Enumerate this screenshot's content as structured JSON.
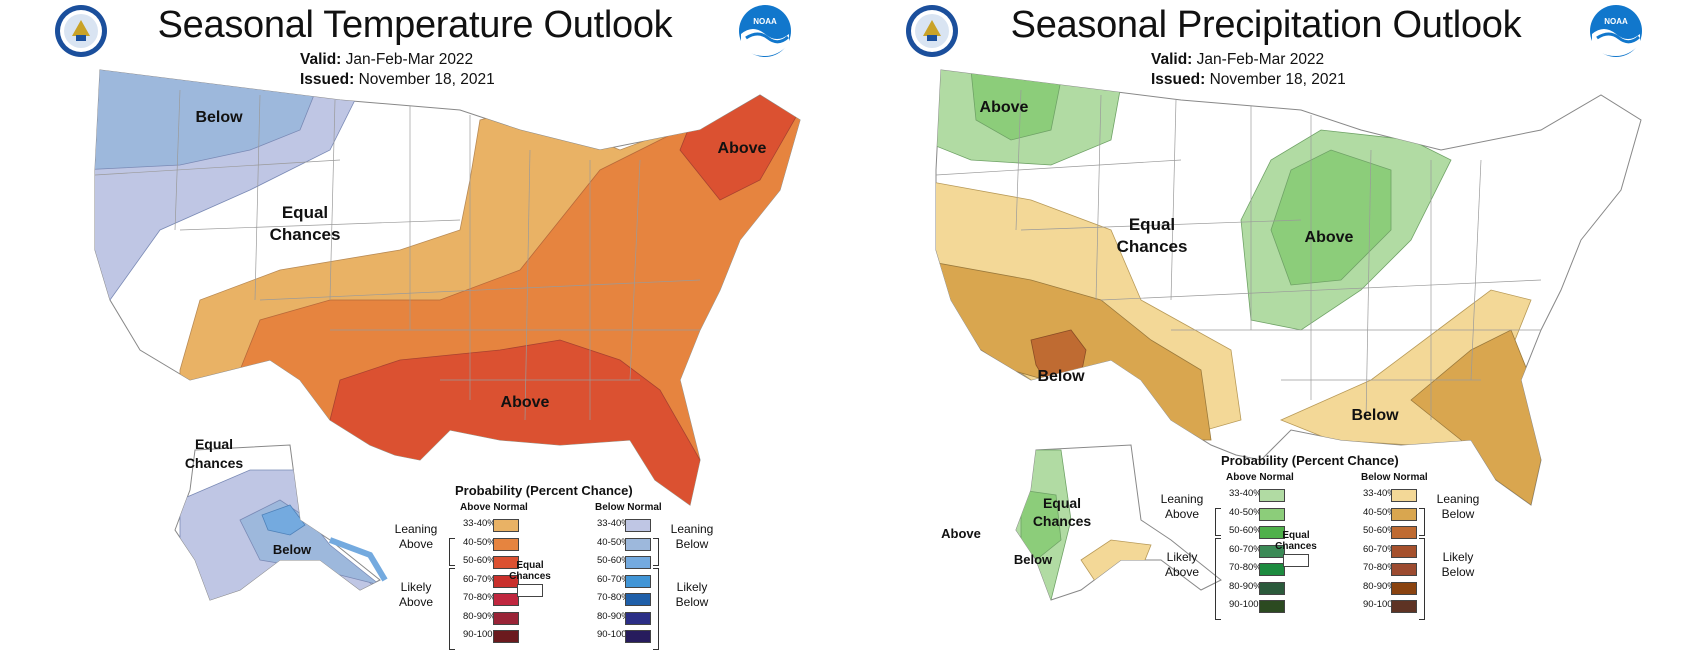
{
  "panels": [
    {
      "title": "Seasonal Temperature Outlook",
      "valid_label": "Valid:",
      "valid_value": "Jan-Feb-Mar 2022",
      "issued_label": "Issued:",
      "issued_value": "November 18, 2021",
      "map_labels": {
        "nw": "Below",
        "ec_line1": "Equal",
        "ec_line2": "Chances",
        "ne": "Above",
        "south": "Above",
        "ak_ec_line1": "Equal",
        "ak_ec_line2": "Chances",
        "ak": "Below"
      }
    },
    {
      "title": "Seasonal Precipitation Outlook",
      "valid_label": "Valid:",
      "valid_value": "Jan-Feb-Mar 2022",
      "issued_label": "Issued:",
      "issued_value": "November 18, 2021",
      "map_labels": {
        "nw": "Above",
        "ec_line1": "Equal",
        "ec_line2": "Chances",
        "gl": "Above",
        "sw": "Below",
        "se": "Below",
        "ak_w": "Above",
        "ak_ec_line1": "Equal",
        "ak_ec_line2": "Chances",
        "ak_s": "Below"
      }
    }
  ],
  "legend": {
    "title": "Probability (Percent Chance)",
    "above_head": "Above Normal",
    "below_head": "Below Normal",
    "categories": [
      "33-40%",
      "40-50%",
      "50-60%",
      "60-70%",
      "70-80%",
      "80-90%",
      "90-100%"
    ],
    "leaning_above": [
      "Leaning",
      "Above"
    ],
    "likely_above": [
      "Likely",
      "Above"
    ],
    "leaning_below": [
      "Leaning",
      "Below"
    ],
    "likely_below": [
      "Likely",
      "Below"
    ],
    "ec": [
      "Equal",
      "Chances"
    ]
  },
  "colors": {
    "temp_above": [
      "#e9b265",
      "#e6843f",
      "#db5131",
      "#c9302c",
      "#c0273f",
      "#9a2437",
      "#6b1a1e"
    ],
    "temp_below": [
      "#bfc6e4",
      "#9db8dc",
      "#74aadf",
      "#4195d6",
      "#1f5fa9",
      "#2b2e86",
      "#271c5d"
    ],
    "precip_above": [
      "#b1dba3",
      "#8ccd7a",
      "#4fb04a",
      "#3b8a56",
      "#1d8b3f",
      "#2b5a3b",
      "#2c4a21"
    ],
    "precip_below": [
      "#f3d897",
      "#d9a64f",
      "#bf6b32",
      "#a5502c",
      "#9c4b30",
      "#8a4310",
      "#5e3324"
    ]
  },
  "icons": [
    "commerce-seal-icon",
    "noaa-logo-icon"
  ]
}
